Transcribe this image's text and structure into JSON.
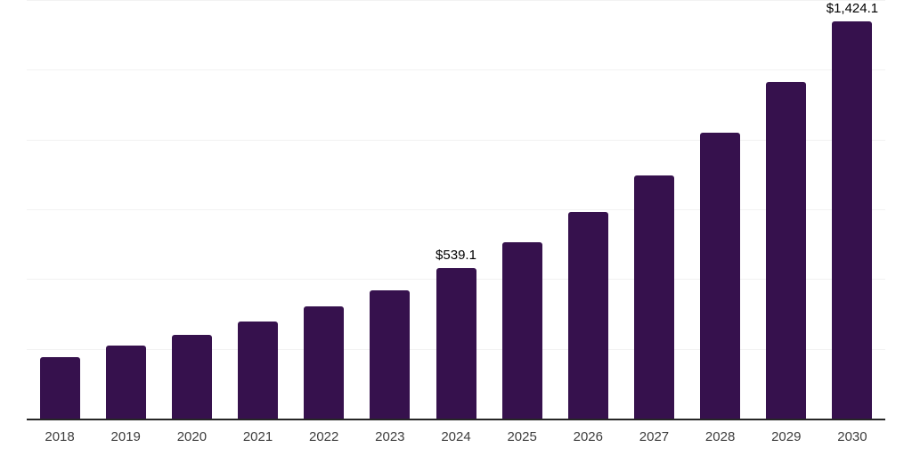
{
  "chart_data": {
    "type": "bar",
    "title": "",
    "xlabel": "",
    "ylabel": "",
    "categories": [
      "2018",
      "2019",
      "2020",
      "2021",
      "2022",
      "2023",
      "2024",
      "2025",
      "2026",
      "2027",
      "2028",
      "2029",
      "2030"
    ],
    "values": [
      220,
      262,
      300,
      348,
      402,
      459,
      539.1,
      633,
      740,
      870,
      1025,
      1208,
      1424.1
    ],
    "value_labels": {
      "2024": "$539.1",
      "2030": "$1,424.1"
    },
    "ylim": [
      0,
      1500
    ],
    "gridline_step": 250,
    "grid": true,
    "legend_position": "none",
    "colors": {
      "bar": "#36114d",
      "axis_line": "#262626",
      "gridline": "#f2f2f2",
      "tick_label": "#3d3d3d",
      "value_label": "#000000",
      "background": "#ffffff"
    }
  }
}
